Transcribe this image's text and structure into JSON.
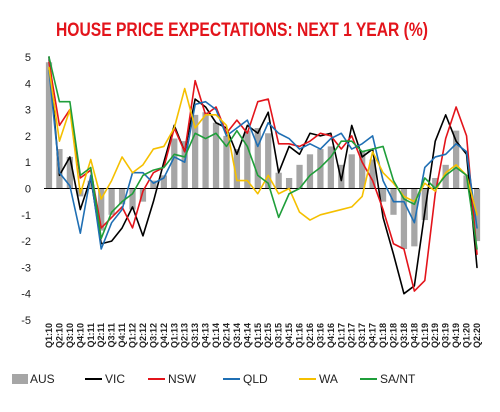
{
  "chart_data": {
    "type": "bar",
    "title": "HOUSE PRICE EXPECTATIONS: NEXT 1 YEAR (%)",
    "xlabel": "",
    "ylabel": "",
    "ylim": [
      -5,
      5
    ],
    "yticks": [
      "5",
      "4",
      "3",
      "2",
      "1",
      "0",
      "-1",
      "-2",
      "-3",
      "-4",
      "-5"
    ],
    "grid": false,
    "legend_position": "bottom",
    "categories": [
      "Q1:10",
      "Q2:10",
      "Q3:10",
      "Q4:10",
      "Q1:11",
      "Q2:11",
      "Q3:11",
      "Q4:11",
      "Q1:12",
      "Q2:12",
      "Q3:12",
      "Q4:12",
      "Q1:13",
      "Q2:13",
      "Q3:13",
      "Q4:13",
      "Q1:14",
      "Q2:14",
      "Q3:14",
      "Q4:14",
      "Q1:15",
      "Q2:15",
      "Q3:15",
      "Q4:15",
      "Q1:16",
      "Q2:16",
      "Q3:16",
      "Q4:16",
      "Q1:17",
      "Q2:17",
      "Q3:17",
      "Q4:17",
      "Q1:18",
      "Q2:18",
      "Q3:18",
      "Q4:18",
      "Q1:19",
      "Q2:19",
      "Q3:19",
      "Q4:19",
      "Q1:20",
      "Q2:20"
    ],
    "series": [
      {
        "name": "AUS",
        "kind": "bar",
        "color": "#a6a6a6",
        "values": [
          4.8,
          1.5,
          1.2,
          -0.3,
          0.3,
          -1.6,
          -1.0,
          -0.6,
          -0.8,
          -0.5,
          0.3,
          0.5,
          1.9,
          1.8,
          2.8,
          2.9,
          2.5,
          2.0,
          1.5,
          2.2,
          2.3,
          2.1,
          0.6,
          0.4,
          0.9,
          1.3,
          1.5,
          1.6,
          0.9,
          1.3,
          1.4,
          1.1,
          -0.5,
          -1.0,
          -2.3,
          -2.2,
          -1.2,
          0.4,
          0.9,
          2.2,
          0.5,
          -2.0
        ]
      },
      {
        "name": "VIC",
        "kind": "line",
        "color": "#000000",
        "values": [
          5.0,
          0.5,
          1.2,
          -0.8,
          0.4,
          -2.1,
          -2.0,
          -1.5,
          -0.7,
          -1.8,
          -0.5,
          1.0,
          2.4,
          1.4,
          3.4,
          3.1,
          2.5,
          2.3,
          1.3,
          2.4,
          2.1,
          2.9,
          0.6,
          1.6,
          1.3,
          2.1,
          2.0,
          2.1,
          0.3,
          2.4,
          1.2,
          1.5,
          -1.1,
          -2.5,
          -4.0,
          -3.7,
          -0.9,
          1.8,
          2.8,
          1.8,
          1.3,
          -3.0
        ]
      },
      {
        "name": "NSW",
        "kind": "line",
        "color": "#e3141b",
        "values": [
          4.8,
          2.4,
          3.0,
          0.4,
          0.7,
          -1.5,
          -1.1,
          -0.7,
          -1.5,
          -0.1,
          0.6,
          0.8,
          2.3,
          1.4,
          4.1,
          2.8,
          3.1,
          2.1,
          2.6,
          2.1,
          3.3,
          3.4,
          1.7,
          1.7,
          1.6,
          1.8,
          2.1,
          2.0,
          1.5,
          2.0,
          1.0,
          0.3,
          -0.8,
          -2.1,
          -2.3,
          -3.9,
          -3.5,
          -0.2,
          1.9,
          3.1,
          2.0,
          -2.5
        ]
      },
      {
        "name": "QLD",
        "kind": "line",
        "color": "#1f6fb4",
        "values": [
          4.5,
          0.6,
          0.1,
          -1.7,
          0.5,
          -2.3,
          -1.3,
          -0.8,
          0.6,
          0.6,
          0.2,
          0.4,
          1.2,
          1.0,
          3.2,
          3.3,
          3.0,
          2.0,
          2.3,
          2.6,
          1.6,
          2.5,
          2.1,
          1.9,
          1.5,
          1.7,
          1.5,
          1.9,
          2.1,
          1.5,
          1.7,
          2.0,
          0.3,
          -0.5,
          -0.5,
          -1.3,
          0.8,
          1.2,
          1.3,
          1.7,
          1.4,
          -1.5
        ]
      },
      {
        "name": "WA",
        "kind": "line",
        "color": "#f5c000",
        "values": [
          4.6,
          1.8,
          3.0,
          -0.2,
          1.1,
          -0.4,
          0.3,
          1.2,
          0.6,
          0.9,
          1.5,
          1.6,
          2.3,
          3.8,
          2.3,
          2.8,
          2.8,
          2.4,
          0.3,
          0.3,
          -0.2,
          0.5,
          -0.2,
          0.0,
          -0.9,
          -1.2,
          -1.0,
          -0.9,
          -0.8,
          -0.7,
          -0.3,
          1.4,
          0.6,
          0.2,
          -0.3,
          -0.5,
          0.2,
          -0.1,
          0.6,
          0.9,
          0.5,
          -1.0
        ]
      },
      {
        "name": "SA/NT",
        "kind": "line",
        "color": "#1f9e3a",
        "values": [
          5.0,
          3.3,
          3.3,
          0.5,
          0.8,
          -1.9,
          -0.9,
          -0.5,
          -0.2,
          0.5,
          0.7,
          0.8,
          1.3,
          1.2,
          2.1,
          1.9,
          2.1,
          1.6,
          2.2,
          1.6,
          0.5,
          0.2,
          -1.1,
          -0.2,
          0.0,
          0.5,
          0.8,
          1.2,
          1.8,
          1.8,
          1.4,
          1.5,
          1.6,
          0.3,
          -0.4,
          -0.6,
          0.4,
          0.0,
          0.5,
          0.8,
          0.5,
          -2.3
        ]
      }
    ]
  }
}
